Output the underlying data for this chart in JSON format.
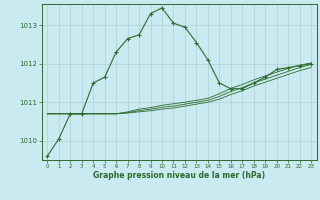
{
  "title": "Graphe pression niveau de la mer (hPa)",
  "bg_color": "#c8eaf0",
  "grid_color": "#b0d0d8",
  "line_color": "#2d6a2d",
  "marker_color": "#2d6a2d",
  "xlim": [
    -0.5,
    23.5
  ],
  "ylim": [
    1009.5,
    1013.55
  ],
  "yticks": [
    1010,
    1011,
    1012,
    1013
  ],
  "xticks": [
    0,
    1,
    2,
    3,
    4,
    5,
    6,
    7,
    8,
    9,
    10,
    11,
    12,
    13,
    14,
    15,
    16,
    17,
    18,
    19,
    20,
    21,
    22,
    23
  ],
  "series_main": [
    1009.6,
    1010.05,
    1010.7,
    1010.7,
    1011.5,
    1011.65,
    1012.3,
    1012.65,
    1012.75,
    1013.3,
    1013.45,
    1013.05,
    1012.95,
    1012.55,
    1012.1,
    1011.5,
    1011.35,
    1011.35,
    1011.5,
    1011.65,
    1011.85,
    1011.9,
    1011.95,
    1012.0
  ],
  "series_flat": [
    [
      1010.7,
      1010.7,
      1010.7,
      1010.7,
      1010.7,
      1010.7,
      1010.7,
      1010.72,
      1010.75,
      1010.78,
      1010.82,
      1010.85,
      1010.9,
      1010.95,
      1011.0,
      1011.08,
      1011.2,
      1011.3,
      1011.42,
      1011.52,
      1011.62,
      1011.72,
      1011.82,
      1011.9
    ],
    [
      1010.7,
      1010.7,
      1010.7,
      1010.7,
      1010.7,
      1010.7,
      1010.7,
      1010.73,
      1010.78,
      1010.82,
      1010.87,
      1010.9,
      1010.95,
      1011.0,
      1011.05,
      1011.15,
      1011.28,
      1011.38,
      1011.5,
      1011.6,
      1011.7,
      1011.8,
      1011.9,
      1011.98
    ],
    [
      1010.7,
      1010.7,
      1010.7,
      1010.7,
      1010.7,
      1010.7,
      1010.7,
      1010.75,
      1010.82,
      1010.86,
      1010.92,
      1010.96,
      1011.0,
      1011.05,
      1011.1,
      1011.22,
      1011.36,
      1011.46,
      1011.58,
      1011.68,
      1011.78,
      1011.88,
      1011.96,
      1012.02
    ]
  ]
}
